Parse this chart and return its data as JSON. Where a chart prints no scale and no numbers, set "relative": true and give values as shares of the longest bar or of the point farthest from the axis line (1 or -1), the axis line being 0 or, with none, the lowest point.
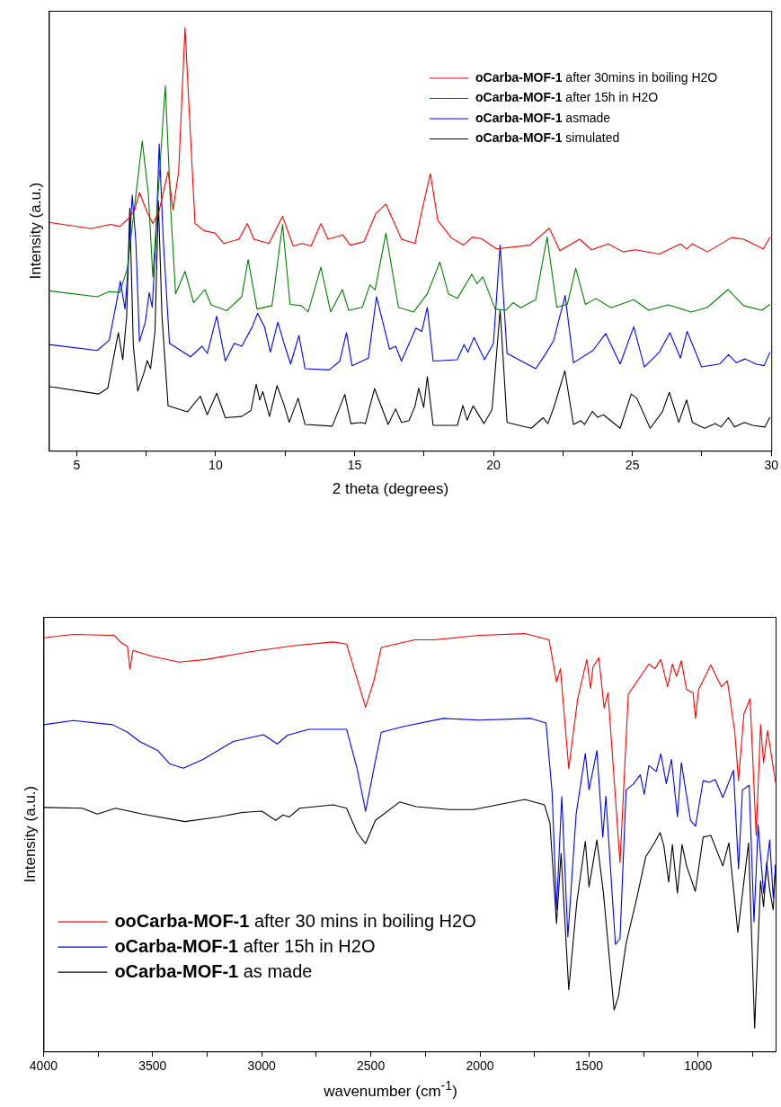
{
  "chart_data": [
    {
      "type": "line",
      "relative": true,
      "xlabel": "2 theta (degrees)",
      "ylabel": "Intensity (a.u.)",
      "xlim": [
        4,
        30
      ],
      "xticks": [
        5,
        {
          "value": 7.5,
          "label": null
        },
        10,
        {
          "value": 12.5,
          "label": null
        },
        15,
        {
          "value": 17.5,
          "label": null
        },
        20,
        {
          "value": 22.5,
          "label": null
        },
        25,
        {
          "value": 27.5,
          "label": null
        },
        30
      ],
      "legend": "top right",
      "marker": "none",
      "line_style": "solid",
      "series": [
        {
          "name": "oCarba-MOF-1 after 30mins in boiling H2O",
          "color": "#ff0000",
          "x": [
            4.0,
            5.52,
            6.23,
            6.55,
            6.88,
            7.09,
            7.26,
            7.53,
            7.74,
            7.96,
            8.29,
            8.47,
            8.67,
            8.9,
            9.1,
            9.26,
            9.59,
            9.97,
            10.29,
            10.84,
            11.14,
            11.38,
            11.92,
            12.41,
            12.79,
            13.11,
            13.44,
            13.79,
            14.04,
            14.58,
            14.85,
            15.34,
            15.77,
            16.13,
            16.69,
            17.18,
            17.4,
            17.73,
            18.0,
            18.49,
            18.92,
            19.24,
            19.57,
            20.11,
            21.31,
            22.01,
            22.39,
            23.1,
            23.53,
            24.13,
            24.67,
            25.1,
            25.97,
            26.73,
            26.95,
            27.16,
            27.7,
            28.57,
            29.0,
            29.71,
            29.95
          ],
          "values": [
            0.54,
            0.525,
            0.535,
            0.53,
            0.55,
            0.57,
            0.61,
            0.565,
            0.537,
            0.565,
            0.66,
            0.57,
            0.66,
            1.0,
            0.74,
            0.537,
            0.52,
            0.515,
            0.49,
            0.5,
            0.537,
            0.5,
            0.49,
            0.554,
            0.484,
            0.49,
            0.484,
            0.537,
            0.5,
            0.51,
            0.486,
            0.494,
            0.561,
            0.583,
            0.5,
            0.49,
            0.56,
            0.655,
            0.544,
            0.503,
            0.486,
            0.505,
            0.501,
            0.477,
            0.486,
            0.526,
            0.473,
            0.5,
            0.475,
            0.489,
            0.47,
            0.475,
            0.465,
            0.489,
            0.477,
            0.489,
            0.47,
            0.504,
            0.5,
            0.477,
            0.505
          ]
        },
        {
          "name": "oCarba-MOF-1 after 15h in H2O",
          "color": "#008000",
          "x": [
            4.0,
            5.74,
            6.17,
            6.55,
            6.82,
            7.36,
            7.58,
            7.74,
            7.96,
            8.19,
            8.39,
            8.56,
            8.9,
            9.21,
            9.61,
            9.84,
            10.4,
            10.94,
            11.17,
            11.49,
            12.03,
            12.41,
            12.68,
            13.09,
            13.33,
            13.79,
            14.14,
            14.56,
            14.79,
            15.28,
            15.55,
            15.74,
            16.13,
            16.58,
            17.13,
            17.62,
            18.07,
            18.38,
            18.7,
            19.22,
            19.41,
            19.62,
            20.06,
            20.44,
            20.71,
            20.98,
            21.52,
            21.93,
            22.28,
            22.66,
            22.96,
            23.31,
            23.69,
            24.23,
            25.05,
            25.59,
            26.29,
            27.11,
            27.7,
            28.44,
            29.0,
            29.66,
            29.95
          ],
          "values": [
            0.378,
            0.364,
            0.376,
            0.374,
            0.43,
            0.732,
            0.607,
            0.411,
            0.636,
            0.863,
            0.565,
            0.371,
            0.424,
            0.35,
            0.381,
            0.345,
            0.331,
            0.364,
            0.452,
            0.335,
            0.343,
            0.535,
            0.346,
            0.343,
            0.328,
            0.434,
            0.328,
            0.381,
            0.332,
            0.339,
            0.392,
            0.38,
            0.514,
            0.339,
            0.328,
            0.371,
            0.446,
            0.371,
            0.36,
            0.417,
            0.395,
            0.411,
            0.335,
            0.332,
            0.35,
            0.338,
            0.357,
            0.505,
            0.339,
            0.346,
            0.431,
            0.346,
            0.36,
            0.338,
            0.357,
            0.332,
            0.345,
            0.328,
            0.339,
            0.381,
            0.343,
            0.332,
            0.346
          ]
        },
        {
          "name": "oCarba-MOF-1 asmade",
          "color": "#0000ff",
          "x": [
            4.0,
            5.74,
            6.17,
            6.44,
            6.57,
            6.74,
            6.84,
            7.0,
            7.13,
            7.26,
            7.47,
            7.61,
            7.72,
            7.85,
            7.97,
            8.12,
            8.34,
            9.1,
            9.51,
            9.7,
            10.04,
            10.35,
            10.67,
            10.94,
            11.32,
            11.51,
            11.76,
            11.97,
            12.24,
            12.46,
            12.7,
            13.0,
            13.22,
            14.09,
            14.47,
            14.71,
            14.91,
            15.5,
            15.79,
            16.26,
            16.48,
            16.69,
            17.21,
            17.42,
            17.62,
            17.83,
            18.7,
            18.94,
            19.08,
            19.3,
            19.68,
            20.0,
            20.24,
            20.49,
            21.52,
            21.85,
            22.17,
            22.58,
            22.88,
            23.58,
            24.04,
            24.56,
            25.05,
            25.43,
            25.97,
            26.35,
            26.73,
            26.97,
            27.49,
            28.14,
            28.46,
            28.74,
            29.06,
            29.44,
            29.74,
            29.95
          ],
          "values": [
            0.251,
            0.237,
            0.261,
            0.353,
            0.401,
            0.335,
            0.424,
            0.604,
            0.494,
            0.258,
            0.304,
            0.374,
            0.339,
            0.494,
            0.725,
            0.494,
            0.254,
            0.222,
            0.247,
            0.23,
            0.318,
            0.212,
            0.254,
            0.247,
            0.293,
            0.325,
            0.293,
            0.233,
            0.304,
            0.254,
            0.205,
            0.272,
            0.194,
            0.191,
            0.212,
            0.279,
            0.201,
            0.219,
            0.364,
            0.24,
            0.247,
            0.212,
            0.29,
            0.282,
            0.339,
            0.212,
            0.215,
            0.251,
            0.233,
            0.268,
            0.215,
            0.254,
            0.486,
            0.23,
            0.194,
            0.226,
            0.261,
            0.367,
            0.208,
            0.237,
            0.277,
            0.205,
            0.293,
            0.198,
            0.233,
            0.279,
            0.219,
            0.282,
            0.198,
            0.205,
            0.227,
            0.208,
            0.217,
            0.205,
            0.201,
            0.233
          ]
        },
        {
          "name": "oCarba-MOF-1 simulated",
          "color": "#000000",
          "x": [
            4.0,
            5.79,
            6.12,
            6.5,
            6.66,
            6.8,
            6.91,
            7.04,
            7.2,
            7.42,
            7.54,
            7.66,
            7.82,
            7.94,
            8.07,
            8.29,
            8.99,
            9.45,
            9.7,
            10.04,
            10.35,
            10.94,
            11.27,
            11.46,
            11.59,
            11.7,
            11.94,
            12.21,
            12.46,
            12.65,
            12.97,
            13.22,
            14.2,
            14.65,
            14.87,
            15.23,
            15.39,
            15.72,
            16.21,
            16.48,
            16.69,
            16.96,
            17.18,
            17.31,
            17.49,
            17.62,
            17.83,
            18.7,
            18.9,
            19.05,
            19.27,
            19.66,
            19.95,
            20.24,
            20.49,
            21.36,
            21.79,
            21.96,
            22.17,
            22.57,
            22.88,
            23.15,
            23.28,
            23.56,
            23.75,
            23.96,
            24.56,
            24.96,
            25.16,
            25.64,
            26.08,
            26.33,
            26.67,
            26.95,
            27.16,
            27.6,
            27.98,
            28.19,
            28.46,
            28.68,
            29.03,
            29.33,
            29.77,
            29.95
          ],
          "values": [
            0.152,
            0.134,
            0.148,
            0.279,
            0.215,
            0.318,
            0.573,
            0.247,
            0.141,
            0.184,
            0.213,
            0.194,
            0.282,
            0.59,
            0.318,
            0.106,
            0.092,
            0.129,
            0.085,
            0.136,
            0.078,
            0.081,
            0.095,
            0.157,
            0.12,
            0.14,
            0.081,
            0.154,
            0.109,
            0.067,
            0.124,
            0.062,
            0.058,
            0.133,
            0.064,
            0.067,
            0.064,
            0.147,
            0.062,
            0.099,
            0.067,
            0.071,
            0.106,
            0.148,
            0.102,
            0.175,
            0.06,
            0.06,
            0.107,
            0.072,
            0.106,
            0.064,
            0.097,
            0.333,
            0.067,
            0.053,
            0.078,
            0.064,
            0.102,
            0.189,
            0.062,
            0.071,
            0.062,
            0.093,
            0.079,
            0.085,
            0.053,
            0.134,
            0.124,
            0.053,
            0.092,
            0.138,
            0.067,
            0.12,
            0.067,
            0.053,
            0.064,
            0.056,
            0.078,
            0.056,
            0.067,
            0.06,
            0.056,
            0.079
          ]
        }
      ]
    },
    {
      "type": "line",
      "relative": true,
      "xlabel": "wavenumber (cm$^{-1}$)",
      "ylabel": "Intensity (a.u.)",
      "xlim": [
        4000,
        645
      ],
      "xticks": [
        4000,
        {
          "value": 3750,
          "label": null
        },
        3500,
        {
          "value": 3250,
          "label": null
        },
        3000,
        {
          "value": 2750,
          "label": null
        },
        2500,
        {
          "value": 2250,
          "label": null
        },
        2000,
        {
          "value": 1750,
          "label": null
        },
        1500,
        {
          "value": 1250,
          "label": null
        },
        1000,
        {
          "value": 750,
          "label": null
        }
      ],
      "legend": "bottom left",
      "marker": "none",
      "line_style": "solid",
      "series": [
        {
          "name": "ooCarba-MOF-1 after 30 mins in boiling H2O",
          "color": "#ff0000",
          "x": [
            4000,
            3864,
            3677,
            3643,
            3615,
            3604,
            3590,
            3504,
            3380,
            3255,
            3061,
            2853,
            2673,
            2611,
            2569,
            2524,
            2486,
            2452,
            2299,
            2210,
            2002,
            1794,
            1683,
            1649,
            1631,
            1593,
            1552,
            1510,
            1493,
            1482,
            1455,
            1431,
            1413,
            1358,
            1320,
            1282,
            1226,
            1198,
            1171,
            1140,
            1118,
            1099,
            1077,
            1053,
            1023,
            1012,
            998,
            942,
            894,
            866,
            832,
            815,
            790,
            762,
            734,
            714,
            700,
            682,
            645
          ],
          "values": [
            0.99,
            0.998,
            0.996,
            0.978,
            0.969,
            0.915,
            0.96,
            0.946,
            0.932,
            0.938,
            0.956,
            0.971,
            0.98,
            0.975,
            0.902,
            0.824,
            0.887,
            0.967,
            0.985,
            0.985,
            0.996,
            1.0,
            0.985,
            0.884,
            0.916,
            0.677,
            0.844,
            0.938,
            0.869,
            0.92,
            0.942,
            0.822,
            0.858,
            0.452,
            0.855,
            0.884,
            0.927,
            0.916,
            0.938,
            0.873,
            0.927,
            0.898,
            0.935,
            0.866,
            0.858,
            0.797,
            0.866,
            0.925,
            0.873,
            0.887,
            0.764,
            0.648,
            0.808,
            0.844,
            0.517,
            0.782,
            0.691,
            0.768,
            0.644
          ]
        },
        {
          "name": "oCarba-MOF-1 after 15h in H2O",
          "color": "#0000ff",
          "x": [
            4000,
            3864,
            3684,
            3615,
            3560,
            3476,
            3421,
            3359,
            3269,
            3130,
            2992,
            2929,
            2881,
            2784,
            2611,
            2563,
            2524,
            2486,
            2452,
            2348,
            2168,
            2002,
            1766,
            1697,
            1669,
            1649,
            1625,
            1597,
            1559,
            1517,
            1500,
            1464,
            1437,
            1423,
            1379,
            1358,
            1330,
            1295,
            1265,
            1247,
            1226,
            1192,
            1171,
            1146,
            1122,
            1095,
            1077,
            1035,
            1012,
            977,
            949,
            922,
            887,
            838,
            815,
            797,
            766,
            744,
            725,
            700,
            672,
            656,
            645
          ],
          "values": [
            0.782,
            0.792,
            0.782,
            0.764,
            0.742,
            0.72,
            0.688,
            0.678,
            0.699,
            0.742,
            0.758,
            0.736,
            0.757,
            0.771,
            0.771,
            0.677,
            0.575,
            0.677,
            0.764,
            0.778,
            0.797,
            0.793,
            0.797,
            0.786,
            0.619,
            0.339,
            0.61,
            0.274,
            0.568,
            0.713,
            0.626,
            0.72,
            0.513,
            0.611,
            0.256,
            0.27,
            0.626,
            0.641,
            0.662,
            0.615,
            0.684,
            0.67,
            0.712,
            0.641,
            0.699,
            0.561,
            0.691,
            0.553,
            0.539,
            0.648,
            0.644,
            0.651,
            0.608,
            0.673,
            0.437,
            0.626,
            0.637,
            0.31,
            0.542,
            0.379,
            0.506,
            0.368,
            0.444
          ]
        },
        {
          "name": "oCarba-MOF-1 as made",
          "color": "#000000",
          "x": [
            4000,
            3823,
            3753,
            3670,
            3546,
            3352,
            3199,
            3089,
            2999,
            2936,
            2902,
            2874,
            2826,
            2673,
            2611,
            2563,
            2524,
            2479,
            2368,
            2292,
            2140,
            2029,
            1794,
            1704,
            1679,
            1649,
            1628,
            1593,
            1556,
            1517,
            1500,
            1464,
            1434,
            1385,
            1365,
            1330,
            1282,
            1240,
            1205,
            1174,
            1157,
            1135,
            1118,
            1095,
            1074,
            1053,
            1013,
            977,
            942,
            887,
            859,
            818,
            769,
            741,
            714,
            700,
            686,
            672,
            656,
            645
          ],
          "values": [
            0.584,
            0.582,
            0.568,
            0.582,
            0.568,
            0.55,
            0.561,
            0.572,
            0.575,
            0.553,
            0.566,
            0.561,
            0.582,
            0.59,
            0.582,
            0.524,
            0.497,
            0.553,
            0.597,
            0.586,
            0.579,
            0.579,
            0.603,
            0.59,
            0.546,
            0.306,
            0.474,
            0.148,
            0.357,
            0.503,
            0.394,
            0.506,
            0.379,
            0.099,
            0.132,
            0.259,
            0.365,
            0.466,
            0.495,
            0.524,
            0.492,
            0.405,
            0.495,
            0.379,
            0.495,
            0.444,
            0.383,
            0.513,
            0.517,
            0.444,
            0.499,
            0.285,
            0.499,
            0.056,
            0.408,
            0.346,
            0.452,
            0.386,
            0.339,
            0.448
          ]
        }
      ]
    }
  ]
}
